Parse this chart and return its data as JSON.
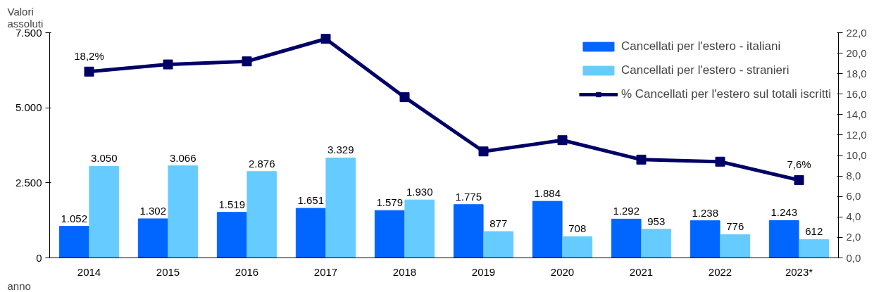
{
  "chart_data": {
    "type": "bar",
    "ylabel": "Valori assoluti",
    "xlabel": "anno",
    "categories": [
      "2014",
      "2015",
      "2016",
      "2017",
      "2018",
      "2019",
      "2020",
      "2021",
      "2022",
      "2023*"
    ],
    "series": [
      {
        "name": "Cancellati per l'estero - italiani",
        "color": "#0066ff",
        "values": [
          1052,
          1302,
          1519,
          1651,
          1579,
          1775,
          1884,
          1292,
          1238,
          1243
        ],
        "value_labels": [
          "1.052",
          "1.302",
          "1.519",
          "1.651",
          "1.579",
          "1.775",
          "1.884",
          "1.292",
          "1.238",
          "1.243"
        ]
      },
      {
        "name": "Cancellati per l'estero - stranieri",
        "color": "#66ccff",
        "values": [
          3050,
          3066,
          2876,
          3329,
          1930,
          877,
          708,
          953,
          776,
          612
        ],
        "value_labels": [
          "3.050",
          "3.066",
          "2.876",
          "3.329",
          "1.930",
          "877",
          "708",
          "953",
          "776",
          "612"
        ]
      },
      {
        "name": "% Cancellati per l'estero sul totali iscritti",
        "type": "line",
        "axis": "y2",
        "color": "#000066",
        "values": [
          18.2,
          18.9,
          19.2,
          21.4,
          15.7,
          10.4,
          11.5,
          9.6,
          9.4,
          7.6
        ],
        "value_labels": [
          "18,2%",
          null,
          null,
          null,
          null,
          null,
          null,
          null,
          null,
          "7,6%"
        ]
      }
    ],
    "ylim": [
      0,
      7500
    ],
    "yticks": [
      0,
      {
        "value": 2500,
        "label": "2.500"
      },
      {
        "value": 5000,
        "label": "5.000"
      },
      {
        "value": 7500,
        "label": "7.500"
      }
    ],
    "y2lim": [
      0,
      22
    ],
    "y2ticks": [
      {
        "value": 0,
        "label": "0,0"
      },
      {
        "value": 2,
        "label": "2,0"
      },
      {
        "value": 4,
        "label": "4,0"
      },
      {
        "value": 6,
        "label": "6,0"
      },
      {
        "value": 8,
        "label": "8,0"
      },
      {
        "value": 10,
        "label": "10,0"
      },
      {
        "value": 12,
        "label": "12,0"
      },
      {
        "value": 14,
        "label": "14,0"
      },
      {
        "value": 16,
        "label": "16,0"
      },
      {
        "value": 18,
        "label": "18,0"
      },
      {
        "value": 20,
        "label": "20,0"
      },
      {
        "value": 22,
        "label": "22,0"
      }
    ],
    "marker": "square",
    "line_style": "solid",
    "grid": false,
    "legend": "top right"
  }
}
